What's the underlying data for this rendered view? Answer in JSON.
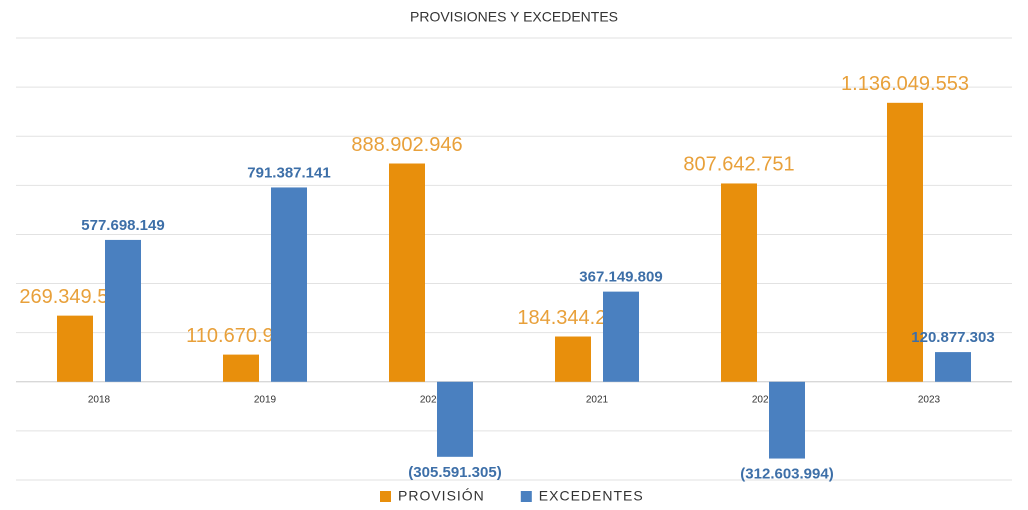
{
  "chart_data": {
    "type": "bar",
    "title": "PROVISIONES Y EXCEDENTES",
    "categories": [
      "2018",
      "2019",
      "2020",
      "2021",
      "2022",
      "2023"
    ],
    "series": [
      {
        "name": "PROVISIÓN",
        "color": "#e88f0c",
        "values": [
          269349523,
          110670933,
          888902946,
          184344236,
          807642751,
          1136049553
        ],
        "value_labels": [
          "269.349.523",
          "110.670.933",
          "888.902.946",
          "184.344.236",
          "807.642.751",
          "1.136.049.553"
        ]
      },
      {
        "name": "EXCEDENTES",
        "color": "#4a80c0",
        "values": [
          577698149,
          791387141,
          -305591305,
          367149809,
          -312603994,
          120877303
        ],
        "value_labels": [
          "577.698.149",
          "791.387.141",
          "(305.591.305)",
          "367.149.809",
          "(312.603.994)",
          "120.877.303"
        ]
      }
    ],
    "ylim": [
      -400000000,
      1400000000
    ],
    "yticks": [
      -400000000,
      -200000000,
      0,
      200000000,
      400000000,
      600000000,
      800000000,
      1000000000,
      1200000000,
      1400000000
    ],
    "grid": true,
    "legend": "bottom"
  }
}
